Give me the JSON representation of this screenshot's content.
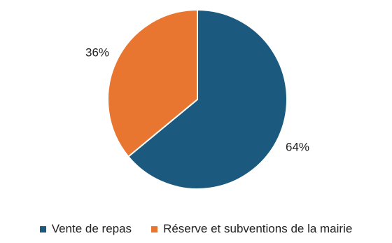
{
  "chart_data": {
    "type": "pie",
    "title": "",
    "start_angle_deg": 0,
    "direction": "clockwise",
    "slices": [
      {
        "label": "Vente de repas",
        "value": 64,
        "display": "64%",
        "color": "#1b5a7e"
      },
      {
        "label": "Réserve et subventions de la mairie",
        "value": 36,
        "display": "36%",
        "color": "#e97630"
      }
    ],
    "legend_position": "bottom"
  }
}
